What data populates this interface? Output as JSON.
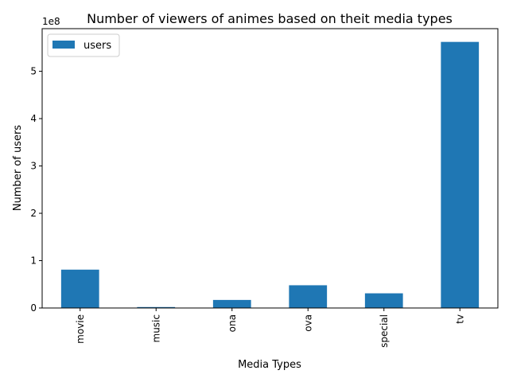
{
  "chart_data": {
    "type": "bar",
    "title": "Number of viewers of animes based on theit media types",
    "xlabel": "Media Types",
    "ylabel": "Number of users",
    "y_offset_label": "1e8",
    "y_scale": 100000000,
    "ylim": [
      0,
      590000000
    ],
    "yticks": [
      0,
      100000000,
      200000000,
      300000000,
      400000000,
      500000000
    ],
    "ytick_labels": [
      "0",
      "1",
      "2",
      "3",
      "4",
      "5"
    ],
    "categories": [
      "movie",
      "music",
      "ona",
      "ova",
      "special",
      "tv"
    ],
    "series": [
      {
        "name": "users",
        "color": "#1f77b4",
        "values": [
          81000000,
          2000000,
          17000000,
          48000000,
          31000000,
          562000000
        ]
      }
    ],
    "legend_position": "upper-left",
    "grid": false
  }
}
